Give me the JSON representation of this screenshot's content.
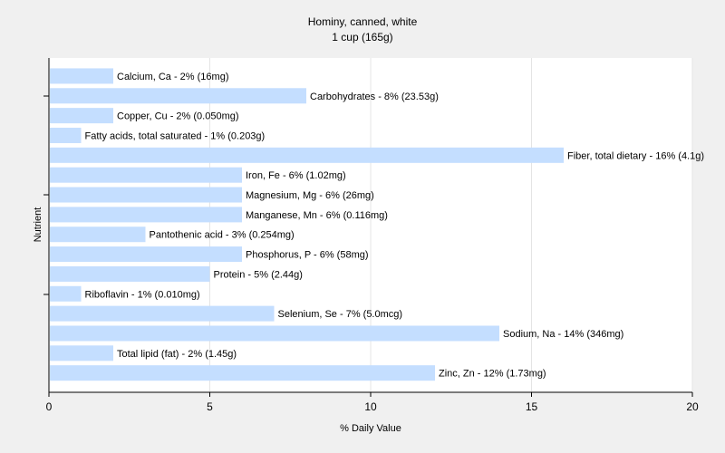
{
  "chart_data": {
    "type": "bar",
    "orientation": "horizontal",
    "title": "Hominy, canned, white",
    "subtitle": "1 cup (165g)",
    "xlabel": "% Daily Value",
    "ylabel": "Nutrient",
    "xlim": [
      0,
      20
    ],
    "xticks": [
      0,
      5,
      10,
      15,
      20
    ],
    "grid": true,
    "bar_color": "#c4deff",
    "categories": [
      "Calcium, Ca",
      "Carbohydrates",
      "Copper, Cu",
      "Fatty acids, total saturated",
      "Fiber, total dietary",
      "Iron, Fe",
      "Magnesium, Mg",
      "Manganese, Mn",
      "Pantothenic acid",
      "Phosphorus, P",
      "Protein",
      "Riboflavin",
      "Selenium, Se",
      "Sodium, Na",
      "Total lipid (fat)",
      "Zinc, Zn"
    ],
    "values": [
      2,
      8,
      2,
      1,
      16,
      6,
      6,
      6,
      3,
      6,
      5,
      1,
      7,
      14,
      2,
      12
    ],
    "labels": [
      "Calcium, Ca - 2% (16mg)",
      "Carbohydrates - 8% (23.53g)",
      "Copper, Cu - 2% (0.050mg)",
      "Fatty acids, total saturated - 1% (0.203g)",
      "Fiber, total dietary - 16% (4.1g)",
      "Iron, Fe - 6% (1.02mg)",
      "Magnesium, Mg - 6% (26mg)",
      "Manganese, Mn - 6% (0.116mg)",
      "Pantothenic acid - 3% (0.254mg)",
      "Phosphorus, P - 6% (58mg)",
      "Protein - 5% (2.44g)",
      "Riboflavin - 1% (0.010mg)",
      "Selenium, Se - 7% (5.0mcg)",
      "Sodium, Na - 14% (346mg)",
      "Total lipid (fat) - 2% (1.45g)",
      "Zinc, Zn - 12% (1.73mg)"
    ]
  }
}
